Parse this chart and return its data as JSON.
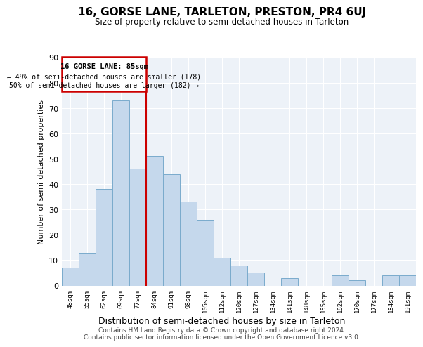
{
  "title": "16, GORSE LANE, TARLETON, PRESTON, PR4 6UJ",
  "subtitle": "Size of property relative to semi-detached houses in Tarleton",
  "xlabel": "Distribution of semi-detached houses by size in Tarleton",
  "ylabel": "Number of semi-detached properties",
  "bin_labels": [
    "48sqm",
    "55sqm",
    "62sqm",
    "69sqm",
    "77sqm",
    "84sqm",
    "91sqm",
    "98sqm",
    "105sqm",
    "112sqm",
    "120sqm",
    "127sqm",
    "134sqm",
    "141sqm",
    "148sqm",
    "155sqm",
    "162sqm",
    "170sqm",
    "177sqm",
    "184sqm",
    "191sqm"
  ],
  "bar_values": [
    7,
    13,
    38,
    73,
    46,
    51,
    44,
    33,
    26,
    11,
    8,
    5,
    0,
    3,
    0,
    0,
    4,
    2,
    0,
    4,
    4
  ],
  "bar_color": "#c5d8ec",
  "bar_edge_color": "#7aabcc",
  "marker_label": "16 GORSE LANE: 85sqm",
  "annotation_smaller": "← 49% of semi-detached houses are smaller (178)",
  "annotation_larger": "50% of semi-detached houses are larger (182) →",
  "box_color": "#cc0000",
  "ylim": [
    0,
    90
  ],
  "yticks": [
    0,
    10,
    20,
    30,
    40,
    50,
    60,
    70,
    80,
    90
  ],
  "footer_line1": "Contains HM Land Registry data © Crown copyright and database right 2024.",
  "footer_line2": "Contains public sector information licensed under the Open Government Licence v3.0.",
  "bg_color": "#edf2f8",
  "grid_color": "#ffffff"
}
